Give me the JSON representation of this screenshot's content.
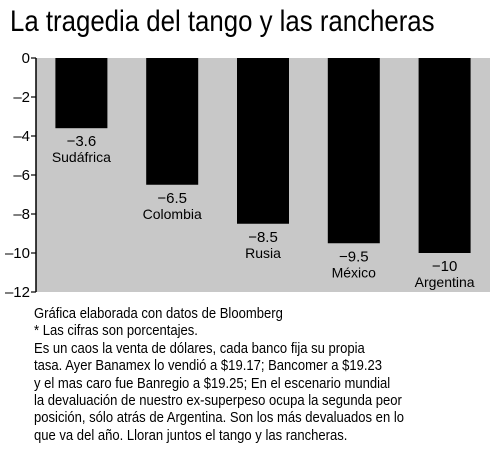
{
  "chart_data": {
    "type": "bar",
    "title": "La tragedia del tango y las rancheras",
    "categories": [
      "Sudáfrica",
      "Colombia",
      "Rusia",
      "México",
      "Argentina"
    ],
    "values": [
      -3.6,
      -6.5,
      -8.5,
      -9.5,
      -10
    ],
    "value_labels": [
      "−3.6",
      "−6.5",
      "−8.5",
      "−9.5",
      "−10"
    ],
    "ylim": [
      -12,
      0
    ],
    "yticks": [
      0,
      -2,
      -4,
      -6,
      -8,
      -10,
      -12
    ],
    "ytick_labels": [
      "0",
      "–2",
      "–4",
      "–6",
      "–8",
      "–10",
      "–12"
    ],
    "bar_color": "#000000",
    "plot_background": "#c8c8c8",
    "grid": false,
    "legend": "none"
  },
  "footer": {
    "lines": [
      "Gráfica elaborada con datos de Bloomberg",
      "* Las cifras son porcentajes.",
      "Es un caos la venta de dólares, cada banco fija su propia",
      "tasa. Ayer Banamex lo vendió a $19.17; Bancomer a $19.23",
      "y el mas caro fue Banregio a $19.25; En el escenario mundial",
      "la devaluación de nuestro ex-superpeso ocupa la segunda peor",
      "posición, sólo atrás de Argentina. Son los más devaluados en lo",
      "que va del año. Lloran juntos el tango y las rancheras."
    ]
  }
}
